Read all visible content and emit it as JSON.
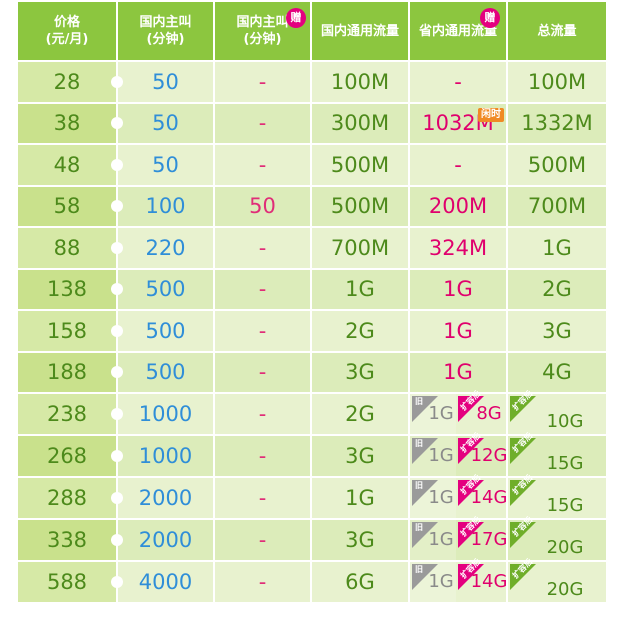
{
  "headers": [
    {
      "line1": "价格",
      "line2": "(元/月)"
    },
    {
      "line1": "国内主叫",
      "line2": "(分钟)"
    },
    {
      "line1": "国内主叫",
      "line2": "(分钟)"
    },
    {
      "line1": "国内通用流量",
      "line2": ""
    },
    {
      "line1": "省内通用流量",
      "line2": ""
    },
    {
      "line1": "总流量",
      "line2": ""
    }
  ],
  "gift_badge": "赠",
  "idle_tag": "闲时",
  "old_label": "旧",
  "expanded_label": "扩容后",
  "rows": [
    {
      "price": "28",
      "minutes": "50",
      "bonus_minutes": "-",
      "national_data": "100M",
      "provincial_data": "-",
      "total_data": "100M"
    },
    {
      "price": "38",
      "minutes": "50",
      "bonus_minutes": "-",
      "national_data": "300M",
      "provincial_data": "1032M",
      "total_data": "1332M"
    },
    {
      "price": "48",
      "minutes": "50",
      "bonus_minutes": "-",
      "national_data": "500M",
      "provincial_data": "-",
      "total_data": "500M"
    },
    {
      "price": "58",
      "minutes": "100",
      "bonus_minutes": "50",
      "national_data": "500M",
      "provincial_data": "200M",
      "total_data": "700M"
    },
    {
      "price": "88",
      "minutes": "220",
      "bonus_minutes": "-",
      "national_data": "700M",
      "provincial_data": "324M",
      "total_data": "1G"
    },
    {
      "price": "138",
      "minutes": "500",
      "bonus_minutes": "-",
      "national_data": "1G",
      "provincial_data": "1G",
      "total_data": "2G"
    },
    {
      "price": "158",
      "minutes": "500",
      "bonus_minutes": "-",
      "national_data": "2G",
      "provincial_data": "1G",
      "total_data": "3G"
    },
    {
      "price": "188",
      "minutes": "500",
      "bonus_minutes": "-",
      "national_data": "3G",
      "provincial_data": "1G",
      "total_data": "4G"
    },
    {
      "price": "238",
      "minutes": "1000",
      "bonus_minutes": "-",
      "national_data": "2G",
      "provincial_old": "1G",
      "provincial_new": "8G",
      "total_new": "10G"
    },
    {
      "price": "268",
      "minutes": "1000",
      "bonus_minutes": "-",
      "national_data": "3G",
      "provincial_old": "1G",
      "provincial_new": "12G",
      "total_new": "15G"
    },
    {
      "price": "288",
      "minutes": "2000",
      "bonus_minutes": "-",
      "national_data": "1G",
      "provincial_old": "1G",
      "provincial_new": "14G",
      "total_new": "15G"
    },
    {
      "price": "338",
      "minutes": "2000",
      "bonus_minutes": "-",
      "national_data": "3G",
      "provincial_old": "1G",
      "provincial_new": "17G",
      "total_new": "20G"
    },
    {
      "price": "588",
      "minutes": "4000",
      "bonus_minutes": "-",
      "national_data": "6G",
      "provincial_old": "1G",
      "provincial_new": "14G",
      "total_new": "20G"
    }
  ]
}
